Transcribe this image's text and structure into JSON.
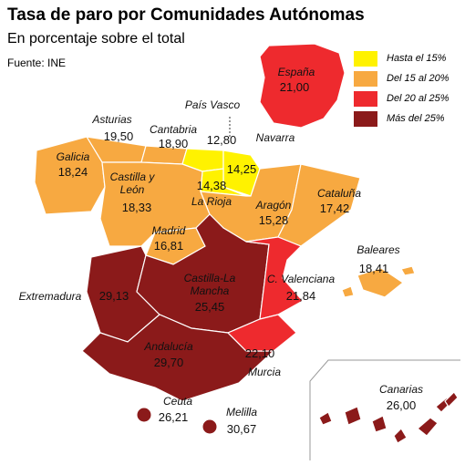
{
  "title": "Tasa de paro por Comunidades Autónomas",
  "subtitle": "En porcentaje sobre el total",
  "source": "Fuente: INE",
  "legend": [
    {
      "label": "Hasta el 15%",
      "color": "#fff200"
    },
    {
      "label": "Del 15 al 20%",
      "color": "#f7a941"
    },
    {
      "label": "Del 20 al 25%",
      "color": "#ee2a2e"
    },
    {
      "label": "Más del 25%",
      "color": "#8b1a1a"
    }
  ],
  "regions": [
    {
      "name": "España",
      "value": "21,00",
      "color": "#ee2a2e"
    },
    {
      "name": "Asturias",
      "value": "19,50",
      "color": "#f7a941"
    },
    {
      "name": "Cantabria",
      "value": "18,90",
      "color": "#f7a941"
    },
    {
      "name": "País Vasco",
      "value": "12,80",
      "color": "#fff200"
    },
    {
      "name": "Navarra",
      "value": "14,25",
      "color": "#fff200"
    },
    {
      "name": "La Rioja",
      "value": "14,38",
      "color": "#fff200"
    },
    {
      "name": "Galicia",
      "value": "18,24",
      "color": "#f7a941"
    },
    {
      "name": "Castilla y León",
      "value": "18,33",
      "color": "#f7a941"
    },
    {
      "name": "Aragón",
      "value": "15,28",
      "color": "#f7a941"
    },
    {
      "name": "Cataluña",
      "value": "17,42",
      "color": "#f7a941"
    },
    {
      "name": "Madrid",
      "value": "16,81",
      "color": "#f7a941"
    },
    {
      "name": "Baleares",
      "value": "18,41",
      "color": "#f7a941"
    },
    {
      "name": "Extremadura",
      "value": "29,13",
      "color": "#8b1a1a"
    },
    {
      "name": "Castilla-La Mancha",
      "value": "25,45",
      "color": "#8b1a1a"
    },
    {
      "name": "C. Valenciana",
      "value": "21,84",
      "color": "#ee2a2e"
    },
    {
      "name": "Andalucía",
      "value": "29,70",
      "color": "#8b1a1a"
    },
    {
      "name": "Murcia",
      "value": "22,10",
      "color": "#ee2a2e"
    },
    {
      "name": "Canarias",
      "value": "26,00",
      "color": "#8b1a1a"
    },
    {
      "name": "Ceuta",
      "value": "26,21",
      "color": "#8b1a1a"
    },
    {
      "name": "Melilla",
      "value": "30,67",
      "color": "#8b1a1a"
    }
  ]
}
